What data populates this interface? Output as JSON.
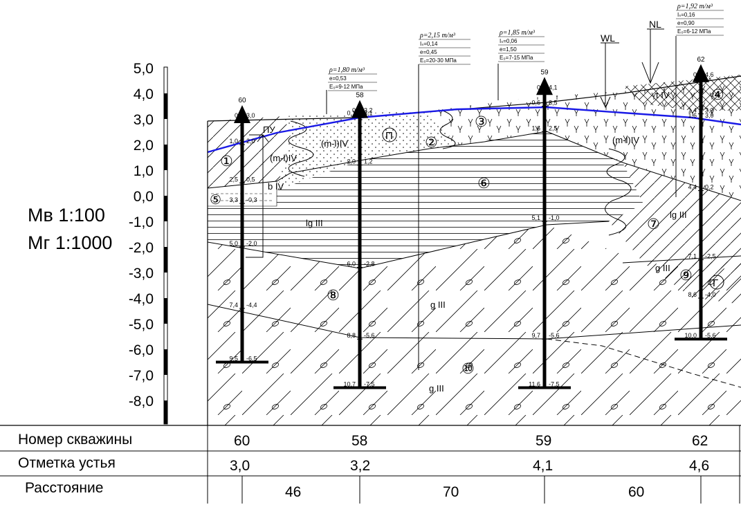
{
  "scale": {
    "vertical": "Мв 1:100",
    "horizontal": "Мг 1:1000",
    "ticks": [
      "5,0",
      "4,0",
      "3,0",
      "2,0",
      "1,0",
      "0,0",
      "-1,0",
      "-2,0",
      "-3,0",
      "-4,0",
      "-5,0",
      "-6,0",
      "-7,0",
      "-8,0"
    ]
  },
  "levels": {
    "groundwater": "WL",
    "natural": "NL",
    "design": "ПУ"
  },
  "boreholes": [
    {
      "number": "60",
      "elevation": "3,0",
      "depth_labels": [
        [
          "0",
          "3,0"
        ],
        [
          "1,0",
          "2,0"
        ],
        [
          "2,5",
          "0,5"
        ],
        [
          "3,3",
          "-0,3"
        ],
        [
          "5,0",
          "-2,0"
        ],
        [
          "7,4",
          "-4,4"
        ],
        [
          "9,5",
          "-6,5"
        ]
      ]
    },
    {
      "number": "58",
      "elevation": "3,2",
      "depth_labels": [
        [
          "0",
          "3,2"
        ],
        [
          "0,1",
          "3,1"
        ],
        [
          "2,0",
          "1,2"
        ],
        [
          "6,0",
          "-2,8"
        ],
        [
          "8,8",
          "-5,6"
        ],
        [
          "10,7",
          "-7,5"
        ]
      ]
    },
    {
      "number": "59",
      "elevation": "4,1",
      "depth_labels": [
        [
          "0",
          "4,1"
        ],
        [
          "0,6",
          "3,5"
        ],
        [
          "1,6",
          "2,5"
        ],
        [
          "5,1",
          "-1,0"
        ],
        [
          "9,7",
          "-5,6"
        ],
        [
          "11,6",
          "-7,5"
        ]
      ]
    },
    {
      "number": "62",
      "elevation": "4,6",
      "depth_labels": [
        [
          "0",
          "4,6"
        ],
        [
          "1,4",
          "3,2"
        ],
        [
          "1,6",
          "3,0"
        ],
        [
          "4,4",
          "0,2"
        ],
        [
          "7,1",
          "-2,5"
        ],
        [
          "8,6",
          "-4,0"
        ],
        [
          "10,0",
          "-5,6"
        ]
      ]
    }
  ],
  "layers": {
    "1": "①",
    "2": "②",
    "3": "③",
    "4": "④",
    "5": "⑤",
    "6": "⑥",
    "7": "⑦",
    "8": "⑧",
    "9": "⑨",
    "10": "⑩",
    "P": "П",
    "G": "Г"
  },
  "genesis": {
    "m_l_iv_a": "(m-l)IV",
    "m_l_iv_b": "(m-l)IV",
    "m_l_iv_c": "(m-l)IV",
    "b_iv": "b IV",
    "t_iv": "t IV",
    "lg_iii_a": "lg III",
    "lg_iii_b": "lg III",
    "g_iii_a": "g III",
    "g_iii_b": "g III",
    "g_iii_c": "g III"
  },
  "properties": [
    {
      "rho": "ρ=1,80 т/м³",
      "lines": [
        "e=0,53",
        "E₀=9-12 МПа"
      ]
    },
    {
      "rho": "ρ=2,15 т/м³",
      "lines": [
        "Iₛ=0,14",
        "e=0,45",
        "E₀=20-30 МПа"
      ]
    },
    {
      "rho": "ρ=1,85 т/м³",
      "lines": [
        "Iₛ=0,06",
        "e=1,50",
        "E₀=7-15 МПа"
      ]
    },
    {
      "rho": "ρ=1,92 т/м³",
      "lines": [
        "Iₛ=0,16",
        "e=0,90",
        "E₀=6-12 МПа"
      ]
    }
  ],
  "table": {
    "row_labels": [
      "Номер скважины",
      "Отметка устья",
      "Расстояние"
    ],
    "distances": [
      "46",
      "70",
      "60"
    ]
  },
  "colors": {
    "groundwater_line": "#1a1ae6",
    "ink": "#000000"
  }
}
